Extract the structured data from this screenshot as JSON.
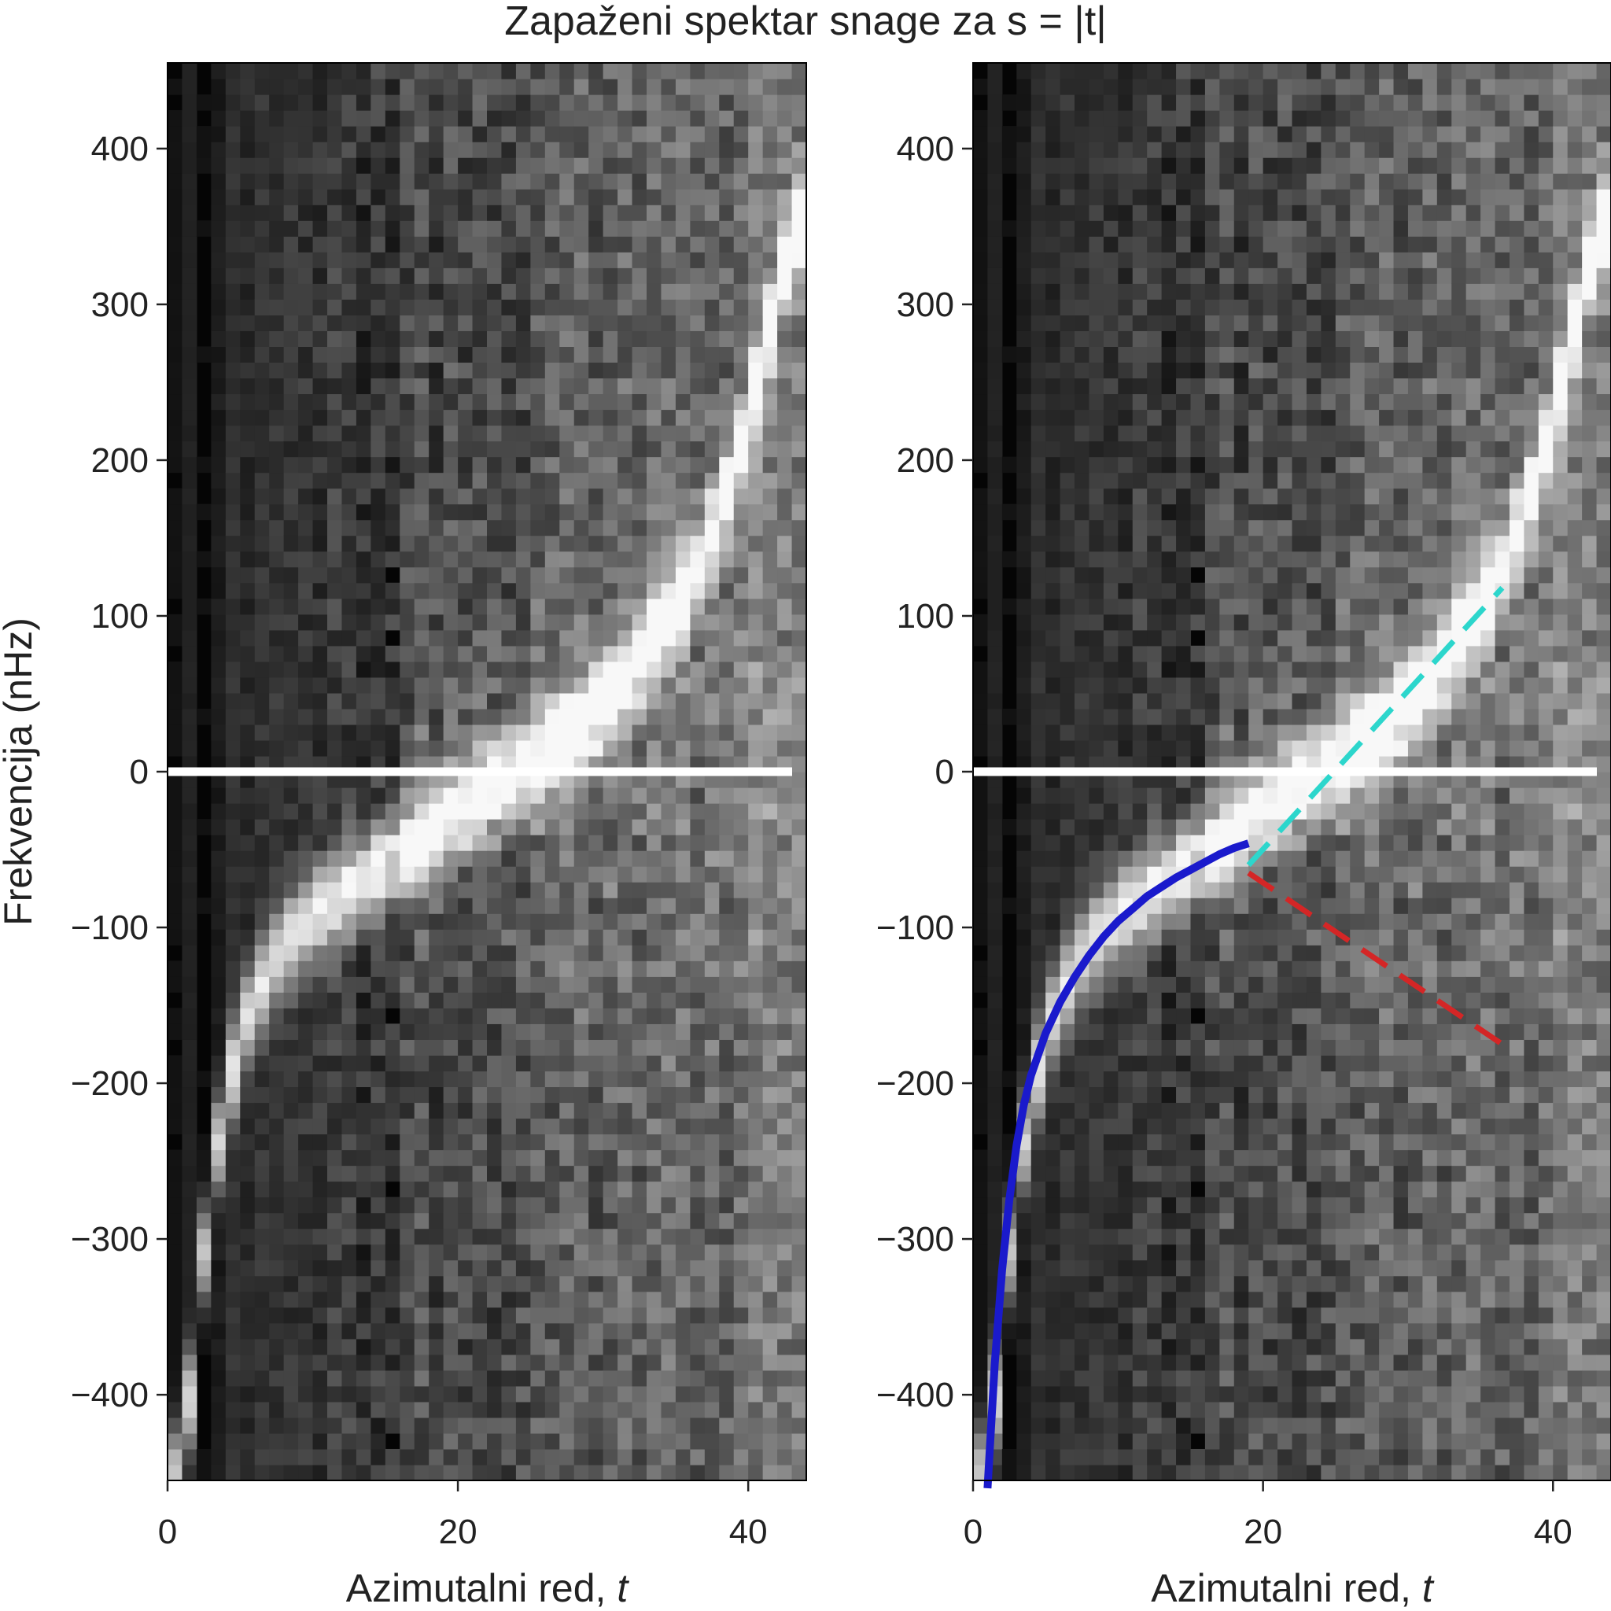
{
  "title": "Zapaženi spektar snage za s = |t|",
  "chart_data": [
    {
      "type": "heatmap",
      "panel": "left",
      "xlabel_text": "Azimutalni red, ",
      "xlabel_var": "t",
      "ylabel": "Frekvencija (nHz)",
      "xlim": [
        0,
        44
      ],
      "ylim": [
        -455,
        455
      ],
      "xticks": [
        "0",
        "20",
        "40"
      ],
      "yticks": [
        "400",
        "300",
        "200",
        "100",
        "0",
        "−100",
        "−200",
        "−300",
        "−400"
      ],
      "colormap": "grayscale",
      "ridge": {
        "t": [
          1,
          3,
          5,
          7,
          9,
          11,
          13,
          15,
          17,
          19,
          21,
          23,
          25,
          27,
          29,
          31,
          33,
          35,
          37,
          39,
          41,
          43
        ],
        "nu": [
          -450,
          -262,
          -168,
          -125,
          -102,
          -86,
          -72,
          -60,
          -46,
          -32,
          -18,
          -6,
          6,
          18,
          34,
          54,
          78,
          105,
          140,
          190,
          260,
          350
        ]
      },
      "zero_line": 0
    },
    {
      "type": "heatmap",
      "panel": "right",
      "xlabel_text": "Azimutalni red, ",
      "xlabel_var": "t",
      "xlim": [
        0,
        44
      ],
      "ylim": [
        -455,
        455
      ],
      "xticks": [
        "0",
        "20",
        "40"
      ],
      "yticks": [
        "400",
        "300",
        "200",
        "100",
        "0",
        "−100",
        "−200",
        "−300",
        "−400"
      ],
      "colormap": "grayscale",
      "zero_line": 0,
      "overlays": [
        {
          "style": "solid",
          "color": "#1a1acc",
          "t": [
            1,
            1.5,
            2,
            2.5,
            3,
            3.5,
            4,
            5,
            6,
            7,
            8,
            9,
            10,
            11,
            12,
            13,
            14,
            15,
            16,
            17,
            18,
            19
          ],
          "nu": [
            -460,
            -380,
            -320,
            -275,
            -240,
            -214,
            -195,
            -168,
            -148,
            -132,
            -118,
            -106,
            -96,
            -88,
            -80,
            -74,
            -68,
            -63,
            -58,
            -53,
            -49,
            -46
          ]
        },
        {
          "style": "dashed",
          "color": "#2cd6cc",
          "t": [
            19,
            36.5
          ],
          "nu": [
            -60,
            118
          ]
        },
        {
          "style": "dashed",
          "color": "#d42626",
          "t": [
            19,
            36.5
          ],
          "nu": [
            -65,
            -175
          ]
        }
      ]
    }
  ]
}
